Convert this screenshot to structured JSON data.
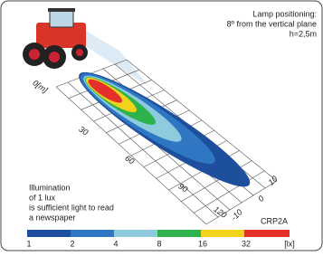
{
  "header": {
    "lines": [
      "Lamp positioning:",
      "8º from the vertical plane",
      "h=2,5m"
    ]
  },
  "distance_labels": [
    "0[m]",
    "30",
    "60",
    "90",
    "120"
  ],
  "lateral_labels": [
    "10",
    "0",
    "-10"
  ],
  "note": {
    "lines": [
      "Illumination",
      "of 1 lux",
      "is sufficient light to read",
      "a newspaper"
    ]
  },
  "model": "CRP2A",
  "scale": {
    "labels": [
      "1",
      "2",
      "4",
      "8",
      "16",
      "32",
      "[lx]"
    ]
  }
}
